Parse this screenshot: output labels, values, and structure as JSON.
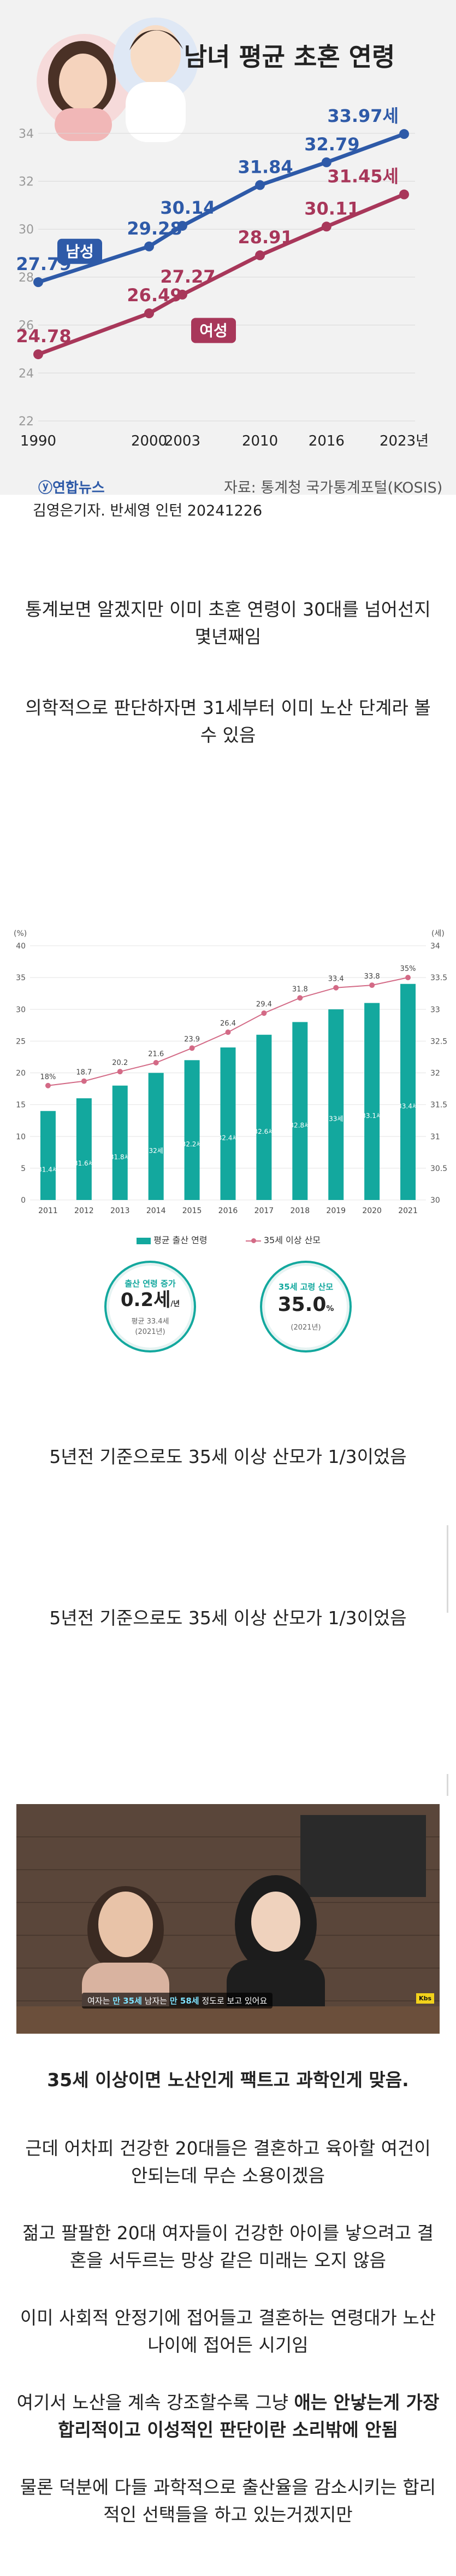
{
  "chart1": {
    "title": "남녀 평균 초혼 연령",
    "x_labels": [
      "1990",
      "2000",
      "2003",
      "2010",
      "2016",
      "2023년"
    ],
    "y_ticks": [
      22,
      24,
      26,
      28,
      30,
      32,
      34
    ],
    "male_tag": "남성",
    "female_tag": "여성",
    "source": "자료: 통계청 국가통계포털(KOSIS)",
    "logo": "연합뉴스"
  },
  "chart_data": [
    {
      "type": "line",
      "title": "남녀 평균 초혼 연령",
      "x": [
        "1990",
        "2000",
        "2003",
        "2010",
        "2016",
        "2023년"
      ],
      "ylim": [
        22,
        35
      ],
      "series": [
        {
          "name": "남성",
          "values": [
            27.79,
            29.28,
            30.14,
            31.84,
            32.79,
            33.97
          ],
          "color": "#2e5aa8",
          "labels": [
            "27.79",
            "29.28",
            "30.14",
            "31.84",
            "32.79",
            "33.97세"
          ]
        },
        {
          "name": "여성",
          "values": [
            24.78,
            26.49,
            27.27,
            28.91,
            30.11,
            31.45
          ],
          "color": "#a8375a",
          "labels": [
            "24.78",
            "26.49",
            "27.27",
            "28.91",
            "30.11",
            "31.45세"
          ]
        }
      ]
    },
    {
      "type": "bar",
      "categories": [
        "2011",
        "2012",
        "2013",
        "2014",
        "2015",
        "2016",
        "2017",
        "2018",
        "2019",
        "2020",
        "2021"
      ],
      "series": [
        {
          "name": "평균 출산 연령",
          "values": [
            31.4,
            31.6,
            31.8,
            32.0,
            32.2,
            32.4,
            32.6,
            32.8,
            33.0,
            33.1,
            33.4
          ],
          "color": "#13a89e"
        },
        {
          "name": "35세 이상 산모",
          "values": [
            18,
            18.7,
            20.2,
            21.6,
            23.9,
            26.4,
            29.4,
            31.8,
            33.4,
            33.8,
            35
          ],
          "color": "#d36a86",
          "labels": [
            "18%",
            "18.7",
            "20.2",
            "21.6",
            "23.9",
            "26.4",
            "29.4",
            "31.8",
            "33.4",
            "33.8",
            "35%"
          ]
        }
      ],
      "left_axis": {
        "unit": "(%)",
        "ticks": [
          0,
          5,
          10,
          15,
          20,
          25,
          30,
          35,
          40
        ]
      },
      "right_axis": {
        "unit": "(세)",
        "ticks": [
          30,
          30.5,
          31,
          31.5,
          32,
          32.5,
          33,
          33.5,
          34
        ]
      }
    }
  ],
  "byline": "김영은기자. 반세영 인턴  20241226",
  "paragraphs": {
    "p1": "통계보면 알겠지만 이미 초혼 연령이 30대를 넘어선지 몇년째임",
    "p2": "의학적으로 판단하자면 31세부터 이미 노산 단계라 볼 수 있음",
    "p3": "5년전 기준으로도 35세 이상 산모가 1/3이었음",
    "p4": "5년전 기준으로도 35세 이상 산모가 1/3이었음",
    "p5": "35세 이상이면 노산인게 팩트고 과학인게 맞음.",
    "p6": "근데 어차피 건강한 20대들은 결혼하고 육아할 여건이 안되는데 무슨 소용이겠음",
    "p7": "젊고 팔팔한 20대 여자들이 건강한 아이를 낳으려고 결혼을 서두르는 망상 같은 미래는 오지 않음",
    "p8": "이미 사회적 안정기에 접어들고 결혼하는 연령대가 노산 나이에 접어든 시기임",
    "p9a": "여기서 노산을 계속 강조할수록 그냥 ",
    "p9b": "애는 안낳는게 가장 합리적이고 이성적인 판단이란 소리밖에 안됨",
    "p10": "물론 덕분에 다들 과학적으로 출산율을 감소시키는 합리적인 선택들을 하고 있는거겠지만"
  },
  "stats": {
    "birth_age": {
      "title": "출산 연령 증가",
      "value": "0.2세",
      "suffix": "/년",
      "sub1": "평균 33.4세",
      "sub2": "(2021년)"
    },
    "older_mothers": {
      "title": "35세 고령 산모",
      "value": "35.0",
      "suffix": "%",
      "sub": "(2021년)"
    }
  },
  "video": {
    "subtitle_a": "여자는",
    "subtitle_b": "만 35세",
    "subtitle_c": "남자는",
    "subtitle_d": "만 58세",
    "subtitle_e": "정도로 보고 있어요",
    "corner_text": "Kbs"
  },
  "colors": {
    "male": "#2e5aa8",
    "female": "#a8375a",
    "bar": "#13a89e",
    "pink_line": "#d36a86"
  }
}
